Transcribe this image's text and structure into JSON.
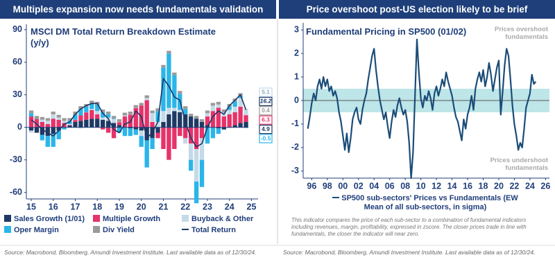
{
  "chart_data": [
    {
      "type": "bar",
      "header": "Multiples expansion now needs fundamentals validation",
      "title": "MSCI DM Total Return Breakdown Estimate (y/y)",
      "source": "Source: Macrobond, Bloomberg, Amundi Investment Institute. Last available data as of 12/30/24.",
      "x": [
        2015,
        2015.25,
        2015.5,
        2015.75,
        2016,
        2016.25,
        2016.5,
        2016.75,
        2017,
        2017.25,
        2017.5,
        2017.75,
        2018,
        2018.25,
        2018.5,
        2018.75,
        2019,
        2019.25,
        2019.5,
        2019.75,
        2020,
        2020.25,
        2020.5,
        2020.75,
        2021,
        2021.25,
        2021.5,
        2021.75,
        2022,
        2022.25,
        2022.5,
        2022.75,
        2023,
        2023.25,
        2023.5,
        2023.75,
        2024,
        2024.25,
        2024.5,
        2024.75
      ],
      "xlim": [
        2014.78,
        2025.3
      ],
      "xticks": [
        {
          "value": 2015,
          "label": "15"
        },
        {
          "value": 2016,
          "label": "16"
        },
        {
          "value": 2017,
          "label": "17"
        },
        {
          "value": 2018,
          "label": "18"
        },
        {
          "value": 2019,
          "label": "19"
        },
        {
          "value": 2020,
          "label": "20"
        },
        {
          "value": 2021,
          "label": "21"
        },
        {
          "value": 2022,
          "label": "22"
        },
        {
          "value": 2023,
          "label": "23"
        },
        {
          "value": 2024,
          "label": "24"
        },
        {
          "value": 2025,
          "label": "25"
        }
      ],
      "ylim": [
        -66,
        95
      ],
      "yticks": [
        -60,
        -30,
        0,
        30,
        60,
        90
      ],
      "series": [
        {
          "name": "Sales Growth (1/01)",
          "color": "#1e3a64",
          "values": [
            -3,
            -5,
            -7,
            -8,
            -6,
            -3,
            0,
            2,
            5,
            6,
            7,
            8,
            8,
            7,
            6,
            4,
            2,
            0,
            -1,
            -2,
            -3,
            -12,
            -10,
            -5,
            5,
            12,
            15,
            14,
            12,
            10,
            8,
            5,
            2,
            0,
            -1,
            -2,
            0,
            2,
            4,
            4.9
          ]
        },
        {
          "name": "Multiple Growth",
          "color": "#e6336a",
          "values": [
            10,
            8,
            5,
            3,
            8,
            7,
            4,
            0,
            2,
            5,
            7,
            8,
            4,
            -2,
            -5,
            -10,
            3,
            10,
            12,
            18,
            20,
            25,
            5,
            -5,
            -20,
            -30,
            -20,
            -8,
            -10,
            -15,
            -20,
            -10,
            8,
            15,
            18,
            10,
            12,
            12,
            15,
            6.3
          ]
        },
        {
          "name": "Buyback & Other",
          "color": "#c5dae8",
          "values": [
            -2,
            0,
            2,
            3,
            4,
            2,
            2,
            1,
            0,
            -1,
            0,
            1,
            3,
            2,
            3,
            4,
            0,
            1,
            0,
            0,
            -5,
            2,
            8,
            5,
            10,
            6,
            3,
            2,
            -5,
            -15,
            -30,
            -20,
            3,
            5,
            3,
            4,
            4,
            5,
            8,
            5.1
          ]
        },
        {
          "name": "Oper Margin",
          "color": "#2bb5e8",
          "values": [
            3,
            0,
            -5,
            -10,
            -12,
            -8,
            -2,
            3,
            5,
            6,
            5,
            5,
            6,
            5,
            3,
            0,
            -5,
            -8,
            -7,
            -5,
            -10,
            -25,
            -10,
            10,
            40,
            50,
            30,
            15,
            5,
            -10,
            -20,
            -25,
            -15,
            -10,
            -5,
            0,
            3,
            5,
            2,
            -0.5
          ]
        },
        {
          "name": "Div Yield",
          "color": "#9a9a9a",
          "values": [
            2.5,
            2.5,
            2.5,
            2.5,
            2.5,
            2.5,
            2.5,
            2.5,
            2.5,
            2.5,
            2.5,
            2.5,
            2.5,
            2.5,
            2.5,
            2.5,
            2.5,
            2.5,
            2.5,
            2.5,
            2.5,
            2.5,
            2.5,
            2.5,
            2.5,
            2.5,
            2.5,
            2.5,
            2.5,
            2.5,
            2.5,
            2.5,
            2.5,
            2.5,
            2.5,
            2.5,
            2.5,
            2.5,
            2.5,
            0.4
          ]
        },
        {
          "name": "Total Return",
          "type": "line",
          "color": "#1c3766",
          "values": [
            7,
            3,
            -2,
            -5,
            -8,
            -3,
            3,
            5,
            12,
            17,
            20,
            22,
            22,
            13,
            8,
            -2,
            -5,
            3,
            5,
            15,
            10,
            -10,
            -5,
            5,
            45,
            38,
            28,
            25,
            5,
            -10,
            -18,
            -15,
            0,
            10,
            15,
            12,
            20,
            25,
            30,
            16.2
          ]
        }
      ]
    },
    {
      "type": "line",
      "header": "Price overshoot post-US election likely to be brief",
      "title": "Fundamental Pricing in SP500 (01/02)",
      "source": "Source: Macrobond, Bloomberg, Amundi Investment Institute. Last available data as of 12/30/24.",
      "note": "This indicator compares the price of each sub-sector to a combination of fundamental indicators including revenues, margin, profitability, expressed in zscore. The closer prices trade in line with fundamentals, the closer the indicator will near zero.",
      "annotations": [
        "Prices overshoot fundamentals",
        "Prices undershoot fundamentals"
      ],
      "band": [
        -0.5,
        0.5
      ],
      "band_color": "#b3e0e3",
      "x": [
        1995.5,
        1995.75,
        1996,
        1996.25,
        1996.5,
        1996.75,
        1997,
        1997.25,
        1997.5,
        1997.75,
        1998,
        1998.25,
        1998.5,
        1998.75,
        1999,
        1999.25,
        1999.5,
        1999.75,
        2000,
        2000.25,
        2000.5,
        2000.75,
        2001,
        2001.25,
        2001.5,
        2001.75,
        2002,
        2002.25,
        2002.5,
        2002.75,
        2003,
        2003.25,
        2003.5,
        2003.75,
        2004,
        2004.25,
        2004.5,
        2004.75,
        2005,
        2005.25,
        2005.5,
        2005.75,
        2006,
        2006.25,
        2006.5,
        2006.75,
        2007,
        2007.25,
        2007.5,
        2007.75,
        2008,
        2008.25,
        2008.5,
        2008.75,
        2009,
        2009.25,
        2009.5,
        2009.75,
        2010,
        2010.25,
        2010.5,
        2010.75,
        2011,
        2011.25,
        2011.5,
        2011.75,
        2012,
        2012.25,
        2012.5,
        2012.75,
        2013,
        2013.25,
        2013.5,
        2013.75,
        2014,
        2014.25,
        2014.5,
        2014.75,
        2015,
        2015.25,
        2015.5,
        2015.75,
        2016,
        2016.25,
        2016.5,
        2016.75,
        2017,
        2017.25,
        2017.5,
        2017.75,
        2018,
        2018.25,
        2018.5,
        2018.75,
        2019,
        2019.25,
        2019.5,
        2019.75,
        2020,
        2020.25,
        2020.5,
        2020.75,
        2021,
        2021.25,
        2021.5,
        2021.75,
        2022,
        2022.25,
        2022.5,
        2022.75,
        2023,
        2023.25,
        2023.5,
        2023.75,
        2024,
        2024.25,
        2024.5,
        2024.75
      ],
      "xlim": [
        1994.9,
        2026.5
      ],
      "xticks": [
        {
          "value": 1996,
          "label": "96"
        },
        {
          "value": 1998,
          "label": "98"
        },
        {
          "value": 2000,
          "label": "00"
        },
        {
          "value": 2002,
          "label": "02"
        },
        {
          "value": 2004,
          "label": "04"
        },
        {
          "value": 2006,
          "label": "06"
        },
        {
          "value": 2008,
          "label": "08"
        },
        {
          "value": 2010,
          "label": "10"
        },
        {
          "value": 2012,
          "label": "12"
        },
        {
          "value": 2014,
          "label": "14"
        },
        {
          "value": 2016,
          "label": "16"
        },
        {
          "value": 2018,
          "label": "18"
        },
        {
          "value": 2020,
          "label": "20"
        },
        {
          "value": 2022,
          "label": "22"
        },
        {
          "value": 2024,
          "label": "24"
        },
        {
          "value": 2026,
          "label": "26"
        }
      ],
      "ylim": [
        -3.3,
        3.3
      ],
      "yticks": [
        -3,
        -2,
        -1,
        0,
        1,
        2,
        3
      ],
      "series": [
        {
          "name": "SP500 sub-sectors' Prices vs Fundamentals (EW Mean of all sub-sectors, in sigma)",
          "color": "#1a4c78",
          "values": [
            -1.2,
            -0.7,
            -0.1,
            0.3,
            0.0,
            0.6,
            0.9,
            0.5,
            1.0,
            0.6,
            0.9,
            0.4,
            0.6,
            0.2,
            0.4,
            0.1,
            -0.5,
            -0.9,
            -1.5,
            -2.1,
            -1.4,
            -2.2,
            -1.6,
            -0.8,
            -0.5,
            -0.3,
            -0.8,
            -1.0,
            -0.4,
            0.0,
            0.3,
            0.9,
            1.4,
            1.9,
            2.2,
            1.3,
            0.6,
            0.0,
            -0.4,
            -0.8,
            -0.5,
            -1.1,
            -1.6,
            -0.9,
            -0.4,
            -0.7,
            -0.2,
            0.1,
            -0.3,
            -0.6,
            -0.4,
            -0.9,
            -1.8,
            -3.3,
            -2.2,
            0.2,
            2.6,
            1.2,
            0.1,
            -0.3,
            0.2,
            0.0,
            0.4,
            0.1,
            -0.4,
            0.3,
            0.6,
            0.2,
            0.5,
            0.9,
            0.6,
            1.2,
            0.8,
            0.5,
            0.2,
            -0.3,
            -0.7,
            -0.9,
            -1.3,
            -1.7,
            -0.8,
            -1.2,
            -0.6,
            -0.3,
            0.2,
            -0.4,
            0.5,
            0.9,
            1.2,
            0.8,
            1.3,
            0.6,
            1.0,
            1.6,
            1.1,
            0.4,
            0.9,
            1.4,
            1.7,
            -0.6,
            0.4,
            1.5,
            2.2,
            1.9,
            0.9,
            -0.2,
            -1.0,
            -1.5,
            -2.1,
            -1.8,
            -2.0,
            -1.2,
            -0.3,
            0.0,
            0.3,
            1.1,
            0.7,
            0.8
          ]
        }
      ]
    }
  ]
}
